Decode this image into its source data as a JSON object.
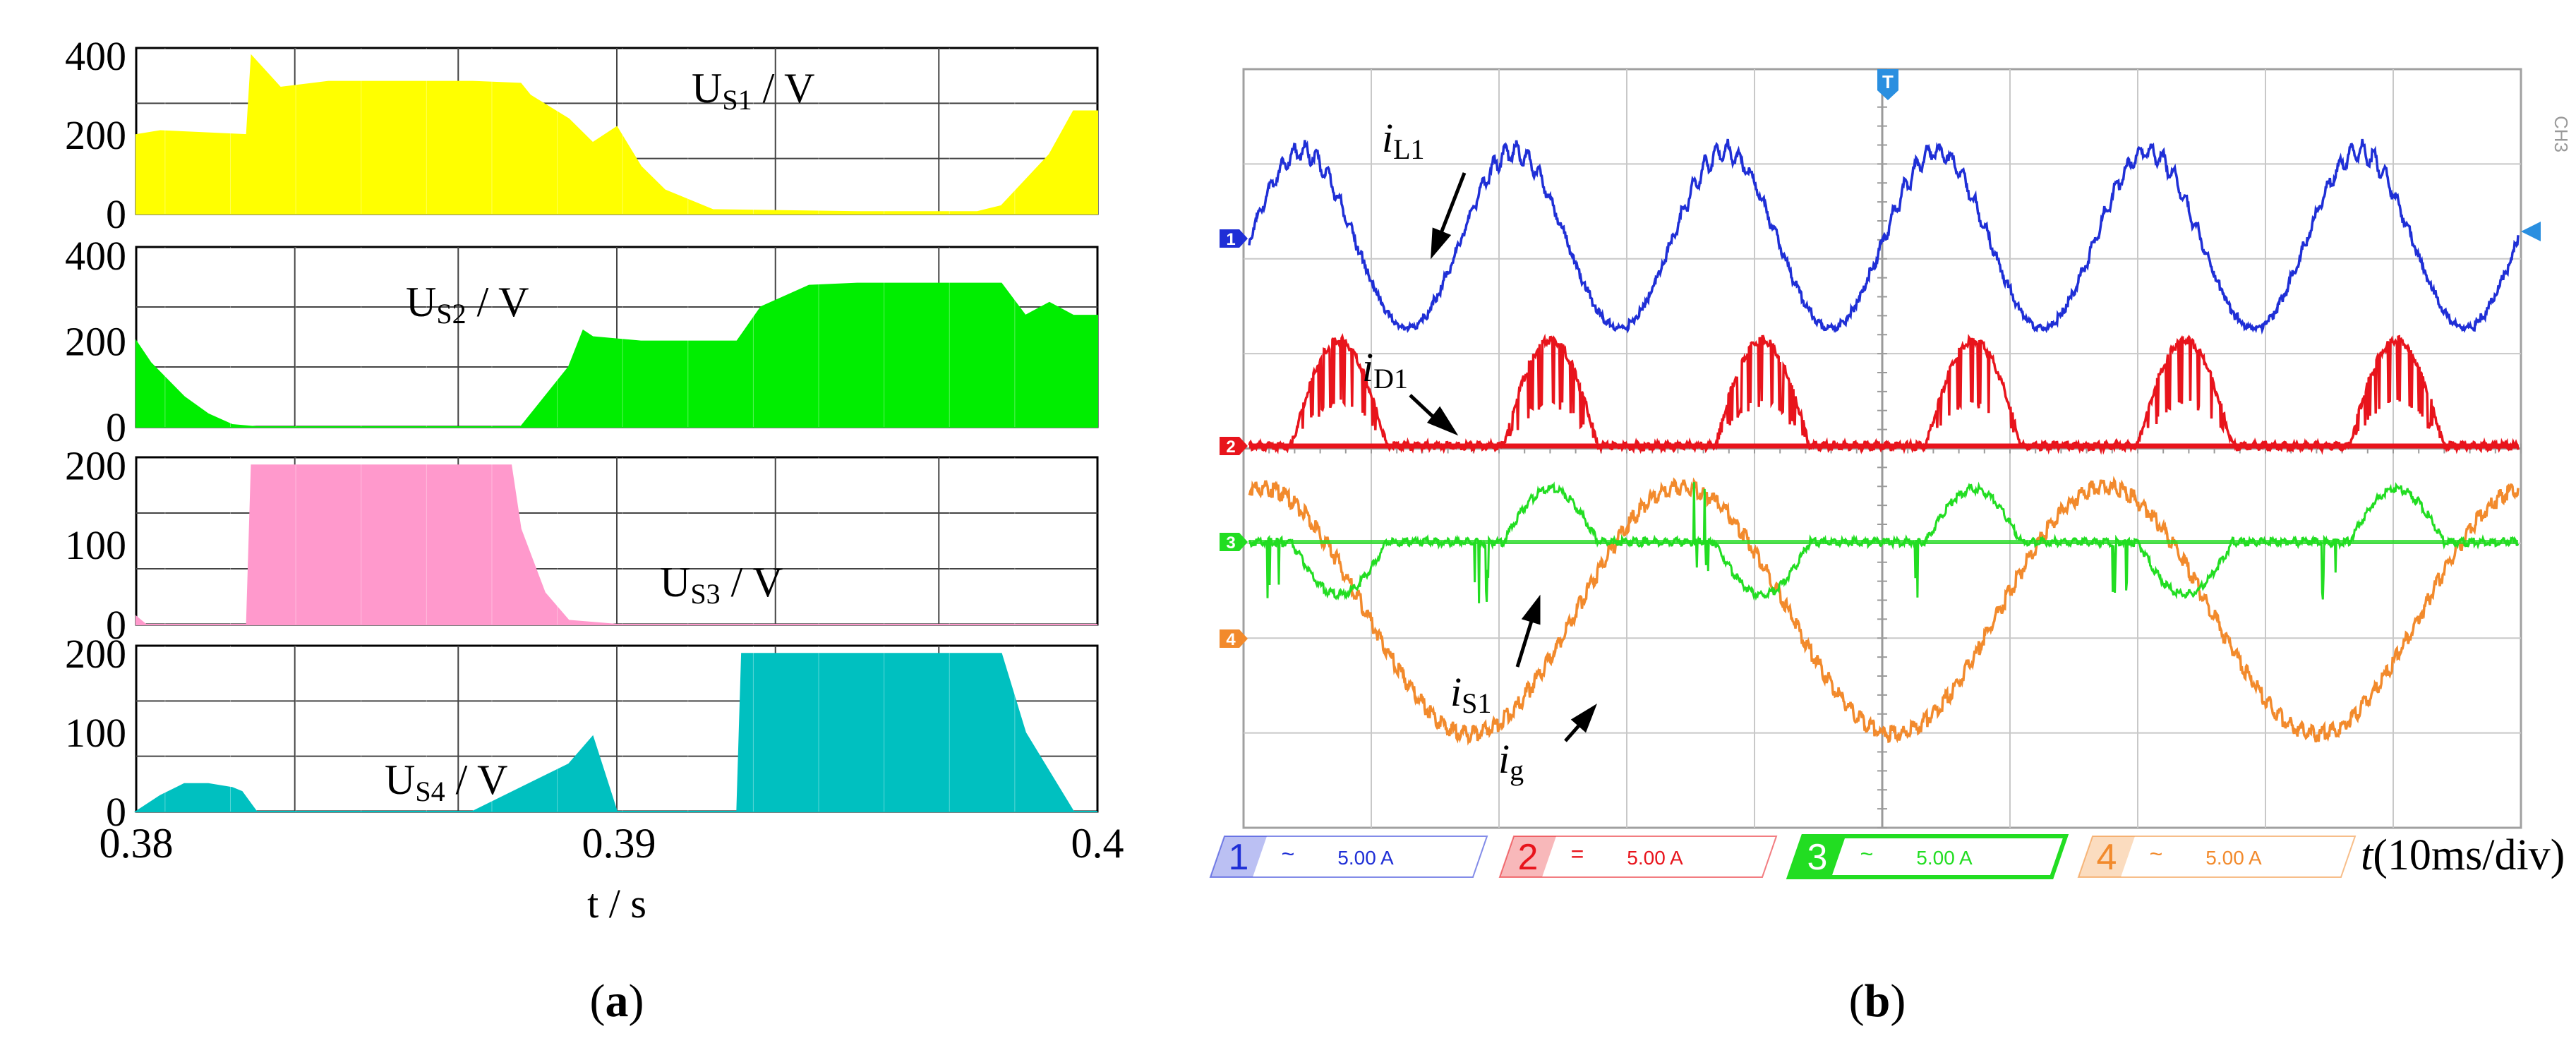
{
  "panel_a": {
    "caption_open": "(",
    "caption_letter": "a",
    "caption_close": ")",
    "xlabel": "t / s",
    "x_ticks": [
      "0.38",
      "0.39",
      "0.4"
    ],
    "xlim": [
      0.38,
      0.4
    ],
    "colors": {
      "US1": "#ffff00",
      "US2": "#00ee00",
      "US3": "#ff99cc",
      "US4": "#00c0c0"
    },
    "subplots": [
      {
        "id": "US1",
        "label_main": "U",
        "label_sub": "S1",
        "label_unit": " / V",
        "ylim": [
          0,
          420
        ],
        "y_ticks": [
          "400",
          "200",
          "0"
        ],
        "y_tick_values": [
          400,
          200,
          0
        ]
      },
      {
        "id": "US2",
        "label_main": "U",
        "label_sub": "S2",
        "label_unit": " / V",
        "ylim": [
          0,
          420
        ],
        "y_ticks": [
          "400",
          "200",
          "0"
        ],
        "y_tick_values": [
          400,
          200,
          0
        ]
      },
      {
        "id": "US3",
        "label_main": "U",
        "label_sub": "S3",
        "label_unit": " / V",
        "ylim": [
          0,
          210
        ],
        "y_ticks": [
          "200",
          "100",
          "0"
        ],
        "y_tick_values": [
          200,
          100,
          0
        ]
      },
      {
        "id": "US4",
        "label_main": "U",
        "label_sub": "S4",
        "label_unit": " / V",
        "ylim": [
          0,
          210
        ],
        "y_ticks": [
          "200",
          "100",
          "0"
        ],
        "y_tick_values": [
          200,
          100,
          0
        ]
      }
    ]
  },
  "panel_b": {
    "caption_open": "(",
    "caption_letter": "b",
    "caption_close": ")",
    "time_label_italic": "t",
    "time_label_rest": "(10ms/div)",
    "trigger_marker": "T",
    "ch3_label": "CH3",
    "traces": [
      {
        "id": "iL1",
        "label_i": "i",
        "label_sub": "L1",
        "color": "#1f2fd6",
        "marker": "1"
      },
      {
        "id": "iD1",
        "label_i": "i",
        "label_sub": "D1",
        "color": "#e8141c",
        "marker": "2"
      },
      {
        "id": "iS1",
        "label_i": "i",
        "label_sub": "S1",
        "color": "#22dd22",
        "marker": "3"
      },
      {
        "id": "ig",
        "label_i": "i",
        "label_sub": "g",
        "color": "#f28a2c",
        "marker": "4"
      }
    ],
    "channels": [
      {
        "num": "1",
        "coupling": "~",
        "scale": "5.00 A",
        "color": "#1f2fd6"
      },
      {
        "num": "2",
        "coupling": "=",
        "scale": "5.00 A",
        "color": "#e8141c"
      },
      {
        "num": "3",
        "coupling": "~",
        "scale": "5.00 A",
        "color": "#22dd22"
      },
      {
        "num": "4",
        "coupling": "~",
        "scale": "5.00 A",
        "color": "#f28a2c"
      }
    ]
  },
  "chart_data": [
    {
      "type": "area",
      "panel": "a",
      "xlabel": "t / s",
      "xlim": [
        0.38,
        0.4
      ],
      "x_ticks": [
        0.38,
        0.39,
        0.4
      ],
      "grid": true,
      "series": [
        {
          "name": "US1 / V",
          "ylim": [
            0,
            420
          ],
          "color": "#ffff00",
          "x": [
            0.38,
            0.3805,
            0.3823,
            0.3824,
            0.383,
            0.384,
            0.385,
            0.386,
            0.387,
            0.388,
            0.3882,
            0.389,
            0.3895,
            0.39,
            0.3905,
            0.391,
            0.392,
            0.395,
            0.3975,
            0.398,
            0.399,
            0.3995,
            0.4
          ],
          "y": [
            200,
            210,
            200,
            400,
            320,
            335,
            335,
            335,
            335,
            330,
            300,
            240,
            180,
            220,
            120,
            60,
            10,
            5,
            5,
            20,
            150,
            260,
            260
          ]
        },
        {
          "name": "US2 / V",
          "ylim": [
            0,
            420
          ],
          "color": "#00ee00",
          "x": [
            0.38,
            0.3803,
            0.381,
            0.3815,
            0.382,
            0.3825,
            0.385,
            0.388,
            0.389,
            0.3893,
            0.3895,
            0.3905,
            0.3925,
            0.393,
            0.394,
            0.395,
            0.397,
            0.398,
            0.3985,
            0.399,
            0.3995,
            0.4
          ],
          "y": [
            200,
            150,
            70,
            30,
            5,
            0,
            0,
            0,
            140,
            225,
            210,
            200,
            200,
            280,
            330,
            335,
            335,
            335,
            260,
            290,
            260,
            260
          ]
        },
        {
          "name": "US3 / V",
          "ylim": [
            0,
            210
          ],
          "color": "#ff99cc",
          "x": [
            0.38,
            0.3802,
            0.3823,
            0.3824,
            0.3875,
            0.3878,
            0.388,
            0.3885,
            0.389,
            0.39,
            0.4
          ],
          "y": [
            10,
            0,
            0,
            200,
            200,
            200,
            120,
            40,
            5,
            0,
            0
          ]
        },
        {
          "name": "US4 / V",
          "ylim": [
            0,
            210
          ],
          "color": "#00c0c0",
          "x": [
            0.38,
            0.3805,
            0.381,
            0.3815,
            0.382,
            0.3822,
            0.3825,
            0.387,
            0.389,
            0.3895,
            0.39,
            0.3925,
            0.3926,
            0.398,
            0.3985,
            0.399,
            0.3995,
            0.4
          ],
          "y": [
            0,
            20,
            35,
            35,
            30,
            25,
            0,
            0,
            60,
            95,
            0,
            0,
            200,
            200,
            100,
            50,
            0,
            0
          ]
        }
      ]
    },
    {
      "type": "line",
      "panel": "b",
      "title": "",
      "xlabel": "t(10ms/div)",
      "grid": true,
      "x_divisions": 10,
      "y_divisions": 8,
      "series": [
        {
          "name": "iL1",
          "scale": "5.00 A/div",
          "shape": "rectified sine, 6 cycles across screen"
        },
        {
          "name": "iD1",
          "scale": "5.00 A/div",
          "shape": "pulsed half-waves on baseline"
        },
        {
          "name": "iS1",
          "scale": "5.00 A/div",
          "shape": "bipolar pulsed segments with spikes"
        },
        {
          "name": "ig",
          "scale": "5.00 A/div",
          "shape": "sine, 3 cycles across screen"
        }
      ]
    }
  ]
}
